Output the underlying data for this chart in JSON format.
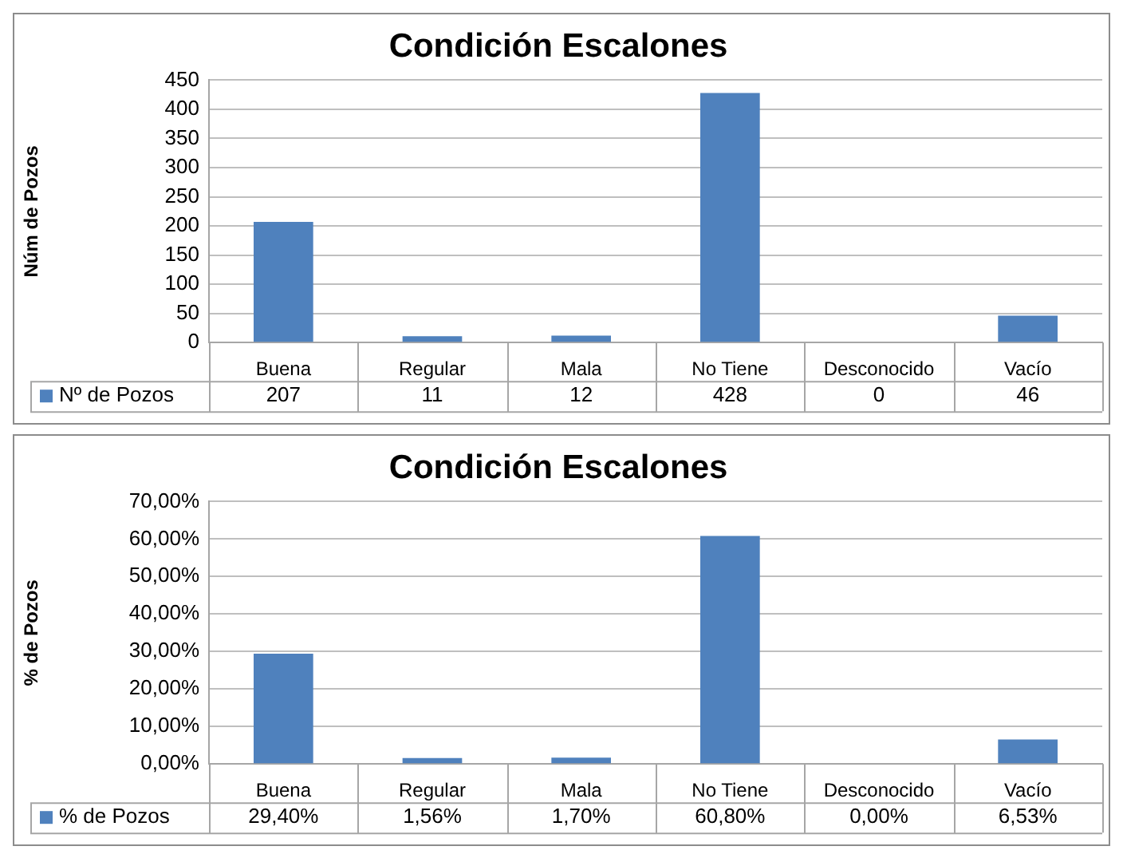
{
  "chart_data": [
    {
      "type": "bar",
      "title": "Condición Escalones",
      "ylabel": "Núm de Pozos",
      "categories": [
        "Buena",
        "Regular",
        "Mala",
        "No Tiene",
        "Desconocido",
        "Vacío"
      ],
      "series": [
        {
          "name": "Nº de Pozos",
          "color": "#4f81bd",
          "values": [
            207,
            11,
            12,
            428,
            0,
            46
          ]
        }
      ],
      "ylim": [
        0,
        450
      ],
      "yticks": [
        0,
        50,
        100,
        150,
        200,
        250,
        300,
        350,
        400,
        450
      ],
      "grid": "y",
      "legend": "bottom",
      "data_labels": true
    },
    {
      "type": "bar",
      "title": "Condición Escalones",
      "ylabel": "% de Pozos",
      "categories": [
        "Buena",
        "Regular",
        "Mala",
        "No Tiene",
        "Desconocido",
        "Vacío"
      ],
      "series": [
        {
          "name": "% de Pozos",
          "color": "#4f81bd",
          "values": [
            29.4,
            1.56,
            1.7,
            60.8,
            0,
            6.53
          ],
          "value_labels": [
            "29,40%",
            "1,56%",
            "1,70%",
            "60,80%",
            "0,00%",
            "6,53%"
          ]
        }
      ],
      "ylim": [
        0,
        70
      ],
      "yticks": [
        {
          "value": 0,
          "label": "0,00%"
        },
        {
          "value": 10,
          "label": "10,00%"
        },
        {
          "value": 20,
          "label": "20,00%"
        },
        {
          "value": 30,
          "label": "30,00%"
        },
        {
          "value": 40,
          "label": "40,00%"
        },
        {
          "value": 50,
          "label": "50,00%"
        },
        {
          "value": 60,
          "label": "60,00%"
        },
        {
          "value": 70,
          "label": "70,00%"
        }
      ],
      "grid": "y",
      "legend": "bottom"
    }
  ]
}
